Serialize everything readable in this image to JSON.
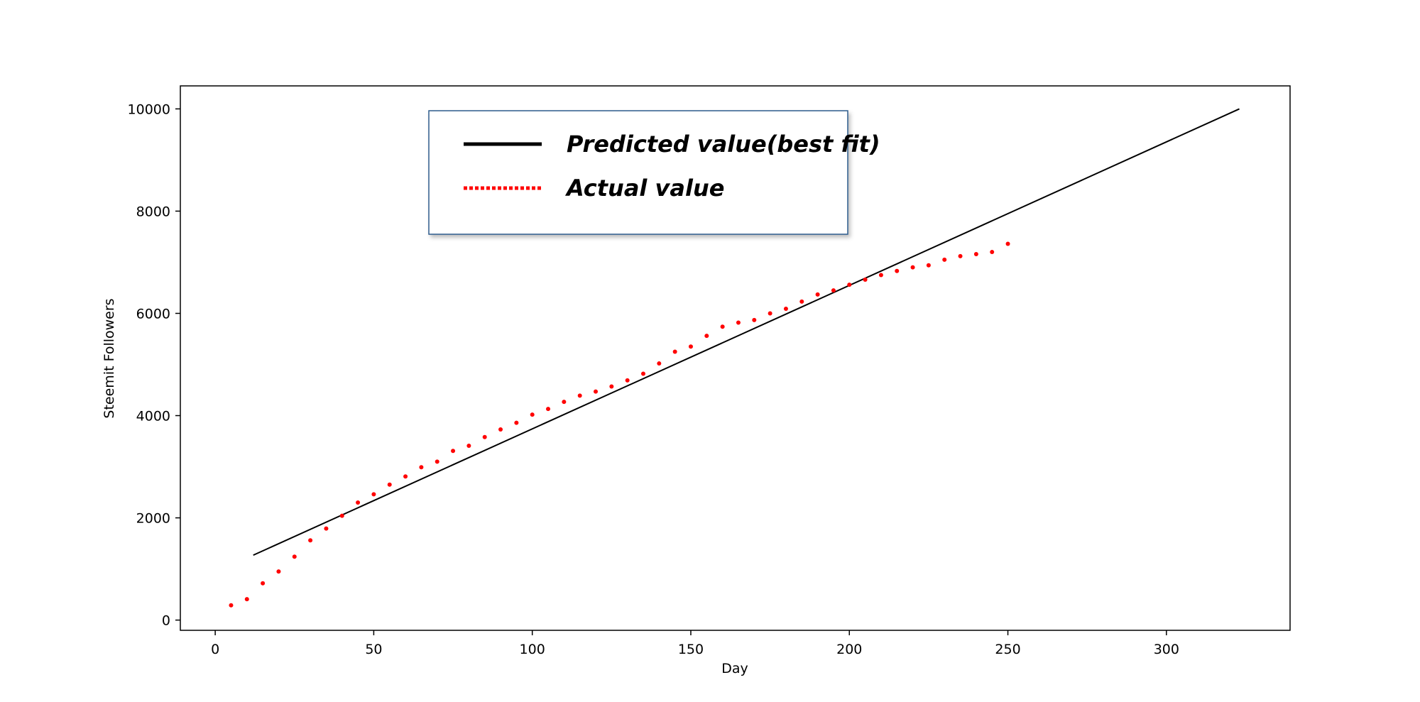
{
  "chart_data": {
    "type": "scatter",
    "xlabel": "Day",
    "ylabel": "Steemit Followers",
    "xlim": [
      -11,
      339
    ],
    "ylim": [
      -200,
      10450
    ],
    "xticks": [
      0,
      50,
      100,
      150,
      200,
      250,
      300
    ],
    "yticks": [
      0,
      2000,
      4000,
      6000,
      8000,
      10000
    ],
    "grid": false,
    "legend_position": "top-center",
    "series": [
      {
        "name": "Predicted value(best fit)",
        "type": "line",
        "color": "#000000",
        "x": [
          12,
          323
        ],
        "y": [
          1270,
          10000
        ]
      },
      {
        "name": "Actual value",
        "type": "scatter",
        "color": "#ff0000",
        "x": [
          5,
          10,
          15,
          20,
          25,
          30,
          35,
          40,
          45,
          50,
          55,
          60,
          65,
          70,
          75,
          80,
          85,
          90,
          95,
          100,
          105,
          110,
          115,
          120,
          125,
          130,
          135,
          140,
          145,
          150,
          155,
          160,
          165,
          170,
          175,
          180,
          185,
          190,
          195,
          200,
          205,
          210,
          215,
          220,
          225,
          230,
          235,
          240,
          245,
          250
        ],
        "y": [
          290,
          410,
          720,
          950,
          1240,
          1560,
          1790,
          2040,
          2300,
          2460,
          2650,
          2810,
          2990,
          3100,
          3310,
          3410,
          3580,
          3730,
          3860,
          4020,
          4130,
          4270,
          4390,
          4470,
          4570,
          4690,
          4820,
          5020,
          5250,
          5350,
          5560,
          5740,
          5820,
          5870,
          6000,
          6090,
          6230,
          6370,
          6450,
          6560,
          6660,
          6750,
          6830,
          6900,
          6940,
          7050,
          7120,
          7160,
          7200,
          7360
        ]
      }
    ]
  }
}
